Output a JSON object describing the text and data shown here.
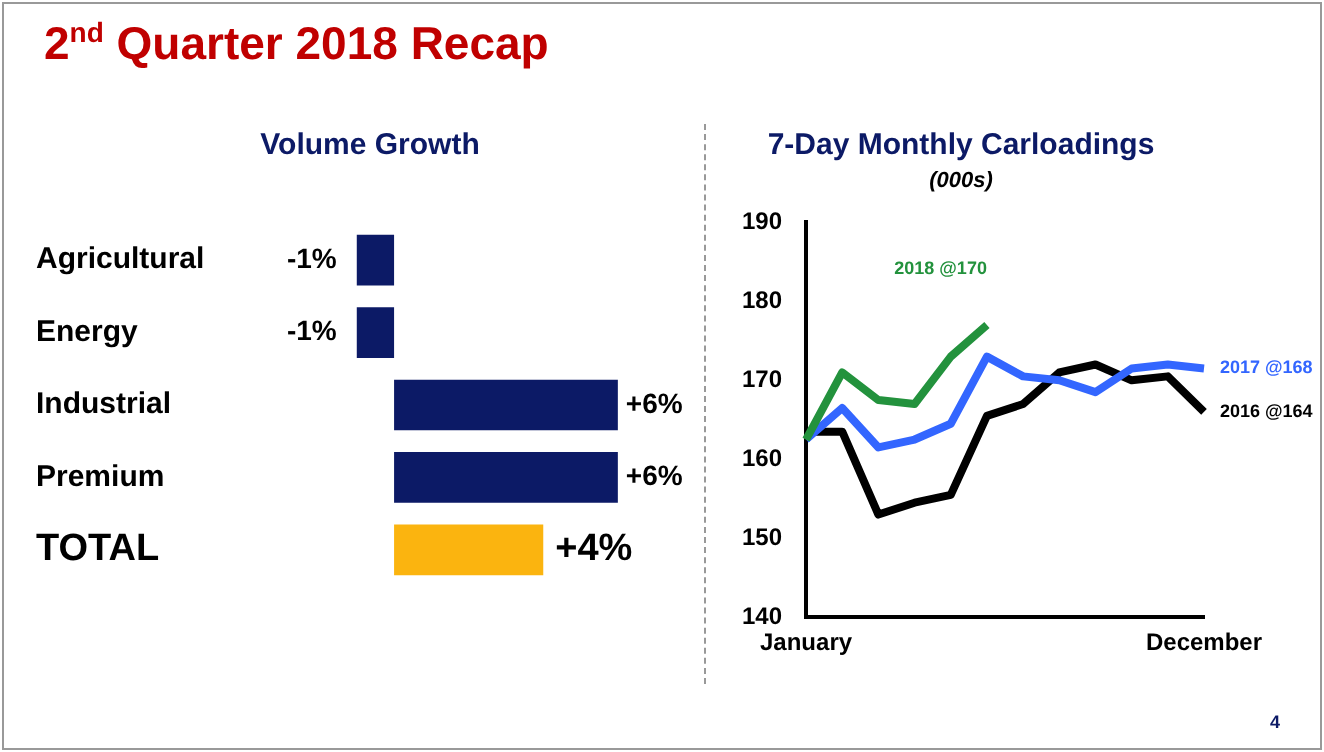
{
  "chart_data": [
    {
      "type": "other",
      "title": "2$^{nd}$ Quarter 2018 Recap",
      "annotations": [
        "4"
      ]
    },
    {
      "type": "bar",
      "title": "Volume Growth",
      "orientation": "horizontal",
      "categories": [
        "Agricultural",
        "Energy",
        "Industrial",
        "Premium",
        "TOTAL"
      ],
      "values": [
        -1,
        -1,
        6,
        6,
        4
      ],
      "colors": [
        "#0c1a66",
        "#0c1a66",
        "#0c1a66",
        "#0c1a66",
        "#fbb40f"
      ],
      "value_labels": [
        "-1%",
        "-1%",
        "+6%",
        "+6%",
        "+4%"
      ],
      "legend": false,
      "grid": false
    },
    {
      "type": "line",
      "title": "7-Day Monthly Carloadings",
      "subtitle": "(000s)",
      "categories": [
        "January",
        null,
        null,
        null,
        null,
        null,
        null,
        null,
        null,
        null,
        null,
        "December"
      ],
      "ylim": [
        140,
        190
      ],
      "yticks": [
        140,
        150,
        160,
        170,
        180,
        190
      ],
      "grid": false,
      "legend": false,
      "marker": "none",
      "line_style": "solid",
      "series": [
        {
          "name": "2018 @170",
          "color": "#23923d",
          "values": [
            162.5,
            171,
            167.5,
            167,
            173,
            177,
            null,
            null,
            null,
            null,
            null,
            null
          ]
        },
        {
          "name": "2017 @168",
          "color": "#3366ff",
          "values": [
            162.5,
            166.5,
            161.5,
            162.5,
            164.5,
            173,
            170.5,
            170,
            168.5,
            171.5,
            172,
            171.5
          ]
        },
        {
          "name": "2016 @164",
          "color": "#000000",
          "values": [
            163.5,
            163.5,
            153,
            154.5,
            155.5,
            165.5,
            167,
            171,
            172,
            170,
            170.5,
            166
          ]
        }
      ]
    }
  ]
}
